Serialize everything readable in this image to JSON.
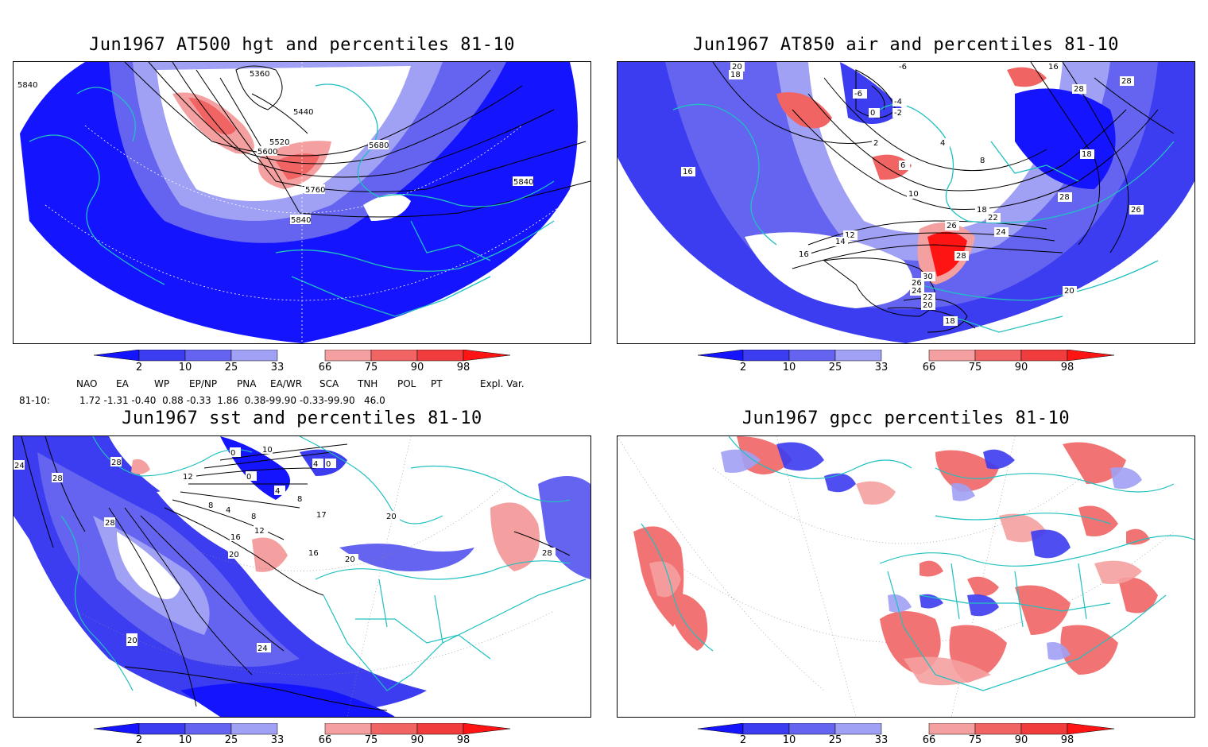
{
  "panels": [
    {
      "id": "p1",
      "title": "Jun1967 AT500 hgt and percentiles 81-10",
      "contour_labels": [
        "5840",
        "5360",
        "5440",
        "5520",
        "5600",
        "5680",
        "5760",
        "5840",
        "5840"
      ]
    },
    {
      "id": "p2",
      "title": "Jun1967 AT850 air and percentiles 81-10",
      "contour_labels": [
        "20",
        "18",
        "-6",
        "-6",
        "-4",
        "-2",
        "0",
        "2",
        "4",
        "6",
        "8",
        "10",
        "12",
        "14",
        "16",
        "18",
        "22",
        "24",
        "26",
        "28",
        "30",
        "26",
        "24",
        "22",
        "20",
        "18",
        "16",
        "28",
        "28",
        "18",
        "28",
        "26",
        "16",
        "20",
        "18"
      ]
    },
    {
      "id": "p3",
      "title": "Jun1967 sst and percentiles 81-10",
      "contour_labels": [
        "24",
        "28",
        "28",
        "12",
        "28",
        "8",
        "4",
        "0",
        "10",
        "0",
        "4",
        "0",
        "4",
        "8",
        "8",
        "12",
        "16",
        "20",
        "16",
        "17",
        "20",
        "20",
        "28",
        "28",
        "24",
        "20"
      ]
    },
    {
      "id": "p4",
      "title": "Jun1967 gpcc percentiles 81-10",
      "contour_labels": []
    }
  ],
  "colorbar": {
    "ticks": [
      "2",
      "10",
      "25",
      "33",
      "66",
      "75",
      "90",
      "98"
    ],
    "colors": {
      "below_2": "#1414ff",
      "c2_10": "#3c3cf0",
      "c10_25": "#6464f0",
      "c25_33": "#a0a0f5",
      "c66_75": "#f5a0a0",
      "c75_90": "#f06464",
      "c90_98": "#f03c3c",
      "above_98": "#ff1414"
    }
  },
  "indices": {
    "headers": [
      "NAO",
      "EA",
      "WP",
      "EP/NP",
      "PNA",
      "EA/WR",
      "SCA",
      "TNH",
      "POL",
      "PT",
      "Expl. Var."
    ],
    "row_label": "81-10:",
    "values": "1.72 -1.31 -0.40  0.88 -0.33  1.86  0.38-99.90 -0.33-99.90   46.0"
  },
  "style": {
    "coast_color": "#20c0c0",
    "contour_color": "#000000"
  }
}
